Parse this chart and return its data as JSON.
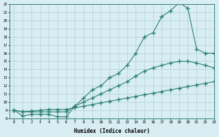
{
  "xlabel": "Humidex (Indice chaleur)",
  "line_color": "#2a7f6f",
  "bg_color": "#d8eef2",
  "grid_color": "#aed0d8",
  "line1_x": [
    0,
    1,
    2,
    3,
    4,
    5,
    6,
    7,
    8,
    9,
    10,
    11,
    12,
    13,
    14,
    15,
    16,
    17,
    18,
    19,
    20,
    21,
    22,
    23
  ],
  "line1_y": [
    9,
    8.3,
    8.5,
    8.5,
    8.5,
    8.2,
    8.2,
    9.5,
    10.5,
    11.5,
    12,
    13,
    13.5,
    14.5,
    16,
    18,
    18.5,
    20.5,
    21.2,
    22.2,
    21.5,
    16.5,
    16,
    16
  ],
  "line2_x": [
    0,
    1,
    2,
    3,
    4,
    5,
    6,
    7,
    8,
    9,
    10,
    11,
    12,
    13,
    14,
    15,
    16,
    17,
    18,
    19,
    20,
    21,
    22,
    23
  ],
  "line2_y": [
    9,
    8.8,
    8.8,
    8.8,
    8.8,
    8.8,
    8.8,
    9.5,
    10.0,
    10.5,
    11.0,
    11.5,
    12.0,
    12.5,
    13.2,
    13.8,
    14.2,
    14.5,
    14.8,
    15.0,
    15.0,
    14.8,
    14.5,
    14.2
  ],
  "line3_x": [
    0,
    1,
    2,
    3,
    4,
    5,
    6,
    7,
    8,
    9,
    10,
    11,
    12,
    13,
    14,
    15,
    16,
    17,
    18,
    19,
    20,
    21,
    22,
    23
  ],
  "line3_y": [
    9,
    8.8,
    8.9,
    9.0,
    9.1,
    9.1,
    9.1,
    9.3,
    9.5,
    9.7,
    9.9,
    10.1,
    10.3,
    10.5,
    10.7,
    10.9,
    11.1,
    11.3,
    11.5,
    11.7,
    11.9,
    12.1,
    12.3,
    12.5
  ],
  "ylim": [
    8,
    22
  ],
  "xlim": [
    -0.5,
    23
  ],
  "yticks": [
    8,
    9,
    10,
    11,
    12,
    13,
    14,
    15,
    16,
    17,
    18,
    19,
    20,
    21,
    22
  ],
  "xticks": [
    0,
    1,
    2,
    3,
    4,
    5,
    6,
    7,
    8,
    9,
    10,
    11,
    12,
    13,
    14,
    15,
    16,
    17,
    18,
    19,
    20,
    21,
    22,
    23
  ]
}
